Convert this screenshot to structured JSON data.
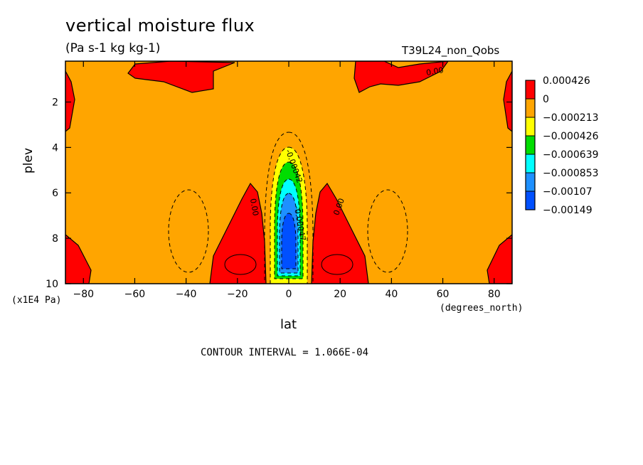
{
  "chart_data": {
    "type": "contour",
    "title": "vertical moisture flux",
    "units": "(Pa s-1 kg kg-1)",
    "run_label": "T39L24_non_Qobs",
    "xlabel": "lat",
    "x_units": "(degrees_north)",
    "ylabel": "plev",
    "y_units": "(x1E4 Pa)",
    "xlim": [
      -87,
      87
    ],
    "ylim": [
      10,
      0.2
    ],
    "x_ticks": [
      -80,
      -60,
      -40,
      -20,
      0,
      20,
      40,
      60,
      80
    ],
    "y_ticks": [
      2,
      4,
      6,
      8,
      10
    ],
    "contour_interval": "CONTOUR INTERVAL = 1.066E-04",
    "legend": [
      {
        "label": "0.000426",
        "color": "#ff0000"
      },
      {
        "label": "0",
        "color": "#ffa500"
      },
      {
        "label": "−0.000213",
        "color": "#ffff00"
      },
      {
        "label": "−0.000426",
        "color": "#00dd00"
      },
      {
        "label": "−0.000639",
        "color": "#00ffff"
      },
      {
        "label": "−0.000853",
        "color": "#1e90ff"
      },
      {
        "label": "−0.00107",
        "color": "#0050ff"
      },
      {
        "label": "−0.00149",
        "color": ""
      }
    ],
    "contour_labels": [
      "0.00",
      "0.00",
      "0.00",
      "-0.00042",
      "-0.00047"
    ]
  }
}
